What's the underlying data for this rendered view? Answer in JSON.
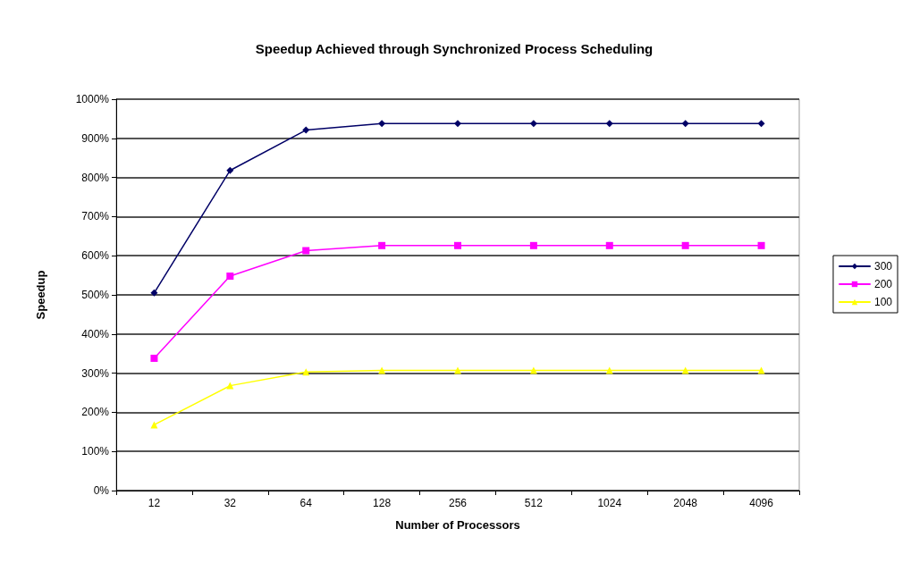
{
  "chart_data": {
    "type": "line",
    "title": "Speedup Achieved through Synchronized Process Scheduling",
    "xlabel": "Number of Processors",
    "ylabel": "Speedup",
    "categories": [
      "12",
      "32",
      "64",
      "128",
      "256",
      "512",
      "1024",
      "2048",
      "4096"
    ],
    "series": [
      {
        "name": "300",
        "color": "#000066",
        "marker": "diamond",
        "values": [
          505,
          818,
          921,
          938,
          938,
          938,
          938,
          938,
          938
        ]
      },
      {
        "name": "200",
        "color": "#ff00ff",
        "marker": "square",
        "values": [
          338,
          548,
          613,
          626,
          626,
          626,
          626,
          626,
          626
        ]
      },
      {
        "name": "100",
        "color": "#ffff00",
        "marker": "triangle",
        "values": [
          168,
          268,
          303,
          307,
          307,
          307,
          307,
          307,
          307
        ]
      }
    ],
    "ylim": [
      0,
      1000
    ],
    "yticks": [
      {
        "value": 0,
        "label": "0%"
      },
      {
        "value": 100,
        "label": "100%"
      },
      {
        "value": 200,
        "label": "200%"
      },
      {
        "value": 300,
        "label": "300%"
      },
      {
        "value": 400,
        "label": "400%"
      },
      {
        "value": 500,
        "label": "500%"
      },
      {
        "value": 600,
        "label": "600%"
      },
      {
        "value": 700,
        "label": "700%"
      },
      {
        "value": 800,
        "label": "800%"
      },
      {
        "value": 900,
        "label": "900%"
      },
      {
        "value": 1000,
        "label": "1000%"
      }
    ],
    "grid": "y",
    "legend": "right",
    "line_style": "solid"
  }
}
